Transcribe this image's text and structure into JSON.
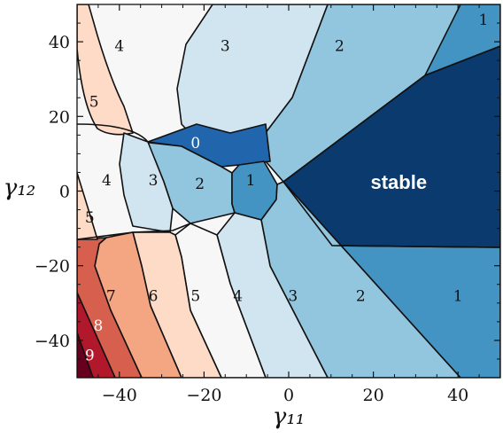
{
  "chart_data": {
    "type": "heatmap",
    "title": "",
    "xlabel": "γ₁₁",
    "ylabel": "γ₁₂",
    "xlim": [
      -50,
      50
    ],
    "ylim": [
      -50,
      50
    ],
    "x_ticks": [
      -40,
      -20,
      0,
      20,
      40
    ],
    "y_ticks": [
      -40,
      -20,
      0,
      20,
      40
    ],
    "x_tick_labels": [
      "−40",
      "−20",
      "0",
      "20",
      "40"
    ],
    "y_tick_labels": [
      "−40",
      "−20",
      "0",
      "20",
      "40"
    ],
    "grid": false,
    "legend": "none",
    "color_scale": {
      "stable": "#0a3a6e",
      "0": "#2166ac",
      "1": "#4393c3",
      "2": "#92c5de",
      "3": "#d1e5f0",
      "4": "#f7f7f7",
      "5": "#fddbc7",
      "6": "#f4a582",
      "7": "#d6604d",
      "8": "#b2182b",
      "9": "#67001f"
    },
    "regions": [
      {
        "label": "4",
        "at": [
          -40,
          39
        ]
      },
      {
        "label": "3",
        "at": [
          -15,
          39
        ]
      },
      {
        "label": "2",
        "at": [
          12,
          39
        ]
      },
      {
        "label": "1",
        "at": [
          46,
          46
        ]
      },
      {
        "label": "5",
        "at": [
          -46,
          24
        ]
      },
      {
        "label": "0",
        "at": [
          -22,
          13
        ]
      },
      {
        "label": "stable",
        "at": [
          26,
          2
        ]
      },
      {
        "label": "4",
        "at": [
          -43,
          3
        ]
      },
      {
        "label": "3",
        "at": [
          -32,
          3
        ]
      },
      {
        "label": "2",
        "at": [
          -21,
          2
        ]
      },
      {
        "label": "1",
        "at": [
          -9,
          3
        ]
      },
      {
        "label": "5",
        "at": [
          -47,
          -7
        ]
      },
      {
        "label": "7",
        "at": [
          -42,
          -28
        ]
      },
      {
        "label": "6",
        "at": [
          -32,
          -28
        ]
      },
      {
        "label": "5",
        "at": [
          -22,
          -28
        ]
      },
      {
        "label": "4",
        "at": [
          -12,
          -28
        ]
      },
      {
        "label": "3",
        "at": [
          1,
          -28
        ]
      },
      {
        "label": "2",
        "at": [
          17,
          -28
        ]
      },
      {
        "label": "1",
        "at": [
          40,
          -28
        ]
      },
      {
        "label": "8",
        "at": [
          -45,
          -36
        ]
      },
      {
        "label": "9",
        "at": [
          -47,
          -44
        ]
      }
    ]
  }
}
